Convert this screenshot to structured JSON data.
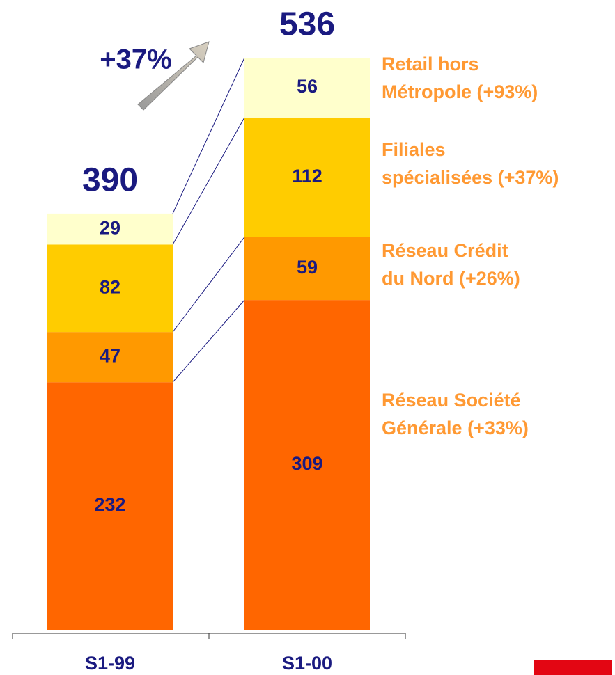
{
  "chart_data": {
    "type": "stacked_bar",
    "categories": [
      "S1-99",
      "S1-00"
    ],
    "series": [
      {
        "name": "Réseau Société\nGénérale (+33%)",
        "color": "#ff6600",
        "values": [
          232,
          309
        ]
      },
      {
        "name": "Réseau Crédit\ndu Nord (+26%)",
        "color": "#ff9900",
        "values": [
          47,
          59
        ]
      },
      {
        "name": "Filiales\nspécialisées (+37%)",
        "color": "#ffcc00",
        "values": [
          82,
          112
        ]
      },
      {
        "name": "Retail hors\nMétropole (+93%)",
        "color": "#ffffcc",
        "values": [
          29,
          56
        ]
      }
    ],
    "totals": [
      390,
      536
    ],
    "annotation": "+37%"
  }
}
